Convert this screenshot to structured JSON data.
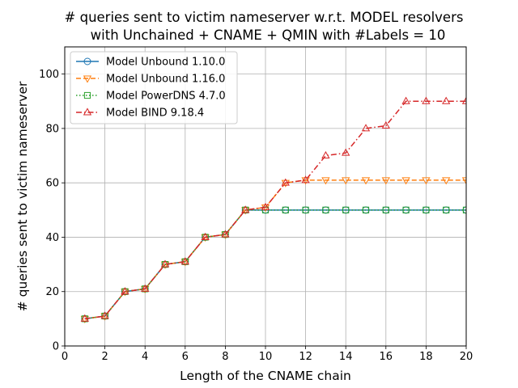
{
  "chart_data": {
    "type": "line",
    "title_lines": [
      "# queries sent to victim nameserver w.r.t. MODEL resolvers",
      "with Unchained + CNAME + QMIN with #Labels = 10"
    ],
    "xlabel": "Length of the CNAME chain",
    "ylabel": "# queries sent to victim nameserver",
    "xlim": [
      0,
      20
    ],
    "ylim": [
      0,
      110
    ],
    "xticks": [
      0,
      2,
      4,
      6,
      8,
      10,
      12,
      14,
      16,
      18,
      20
    ],
    "yticks": [
      0,
      20,
      40,
      60,
      80,
      100
    ],
    "grid": true,
    "legend_position": "top-left",
    "x": [
      1,
      2,
      3,
      4,
      5,
      6,
      7,
      8,
      9,
      10,
      11,
      12,
      13,
      14,
      15,
      16,
      17,
      18,
      19,
      20
    ],
    "series": [
      {
        "name": "Model Unbound 1.10.0",
        "color": "#1f77b4",
        "line_style": "solid",
        "marker": "circle",
        "values": [
          10,
          11,
          20,
          21,
          30,
          31,
          40,
          41,
          50,
          50,
          50,
          50,
          50,
          50,
          50,
          50,
          50,
          50,
          50,
          50
        ]
      },
      {
        "name": "Model Unbound 1.16.0",
        "color": "#ff7f0e",
        "line_style": "dashed",
        "marker": "triangle-down",
        "values": [
          10,
          11,
          20,
          21,
          30,
          31,
          40,
          41,
          50,
          51,
          60,
          61,
          61,
          61,
          61,
          61,
          61,
          61,
          61,
          61
        ]
      },
      {
        "name": "Model PowerDNS 4.7.0",
        "color": "#2ca02c",
        "line_style": "dotted",
        "marker": "square",
        "values": [
          10,
          11,
          20,
          21,
          30,
          31,
          40,
          41,
          50,
          50,
          50,
          50,
          50,
          50,
          50,
          50,
          50,
          50,
          50,
          50
        ]
      },
      {
        "name": "Model BIND 9.18.4",
        "color": "#d62728",
        "line_style": "dashdot",
        "marker": "triangle-up",
        "values": [
          10,
          11,
          20,
          21,
          30,
          31,
          40,
          41,
          50,
          51,
          60,
          61,
          70,
          71,
          80,
          81,
          90,
          90,
          90,
          90
        ]
      }
    ]
  }
}
